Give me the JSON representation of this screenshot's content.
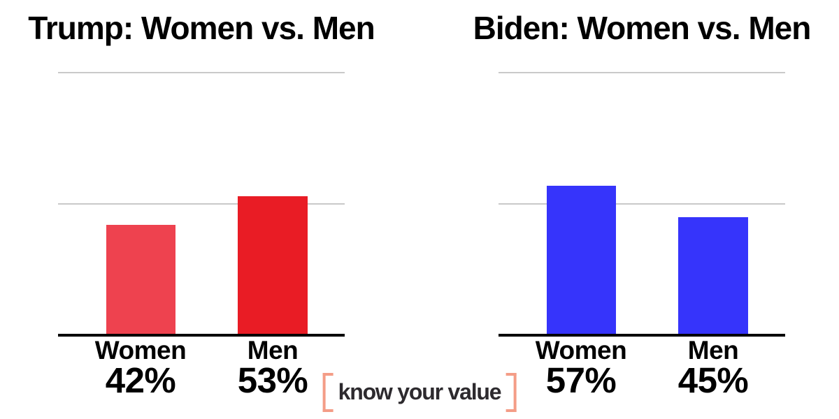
{
  "page": {
    "background_color": "#ffffff"
  },
  "chart_data": [
    {
      "type": "bar",
      "title": "Trump: Women vs. Men",
      "categories": [
        "Women",
        "Men"
      ],
      "values": [
        42,
        53
      ],
      "value_labels": [
        "42%",
        "53%"
      ],
      "bar_colors": [
        "#ee424f",
        "#e91c25"
      ],
      "xlabel": "",
      "ylabel": "",
      "ylim": [
        0,
        100
      ],
      "gridlines_at": [
        50,
        100
      ],
      "grid": true,
      "grid_color": "#c9c9c9",
      "axis_color": "#000000",
      "title_color": "#000000",
      "legend": "none"
    },
    {
      "type": "bar",
      "title": "Biden: Women vs. Men",
      "categories": [
        "Women",
        "Men"
      ],
      "values": [
        57,
        45
      ],
      "value_labels": [
        "57%",
        "45%"
      ],
      "bar_colors": [
        "#3634fb",
        "#3634fb"
      ],
      "xlabel": "",
      "ylabel": "",
      "ylim": [
        0,
        100
      ],
      "gridlines_at": [
        50,
        100
      ],
      "grid": true,
      "grid_color": "#c9c9c9",
      "axis_color": "#000000",
      "title_color": "#000000",
      "legend": "none"
    }
  ],
  "logo": {
    "text": "know your value",
    "bracket_color": "#f49d87",
    "text_color": "#2d2a2e"
  }
}
